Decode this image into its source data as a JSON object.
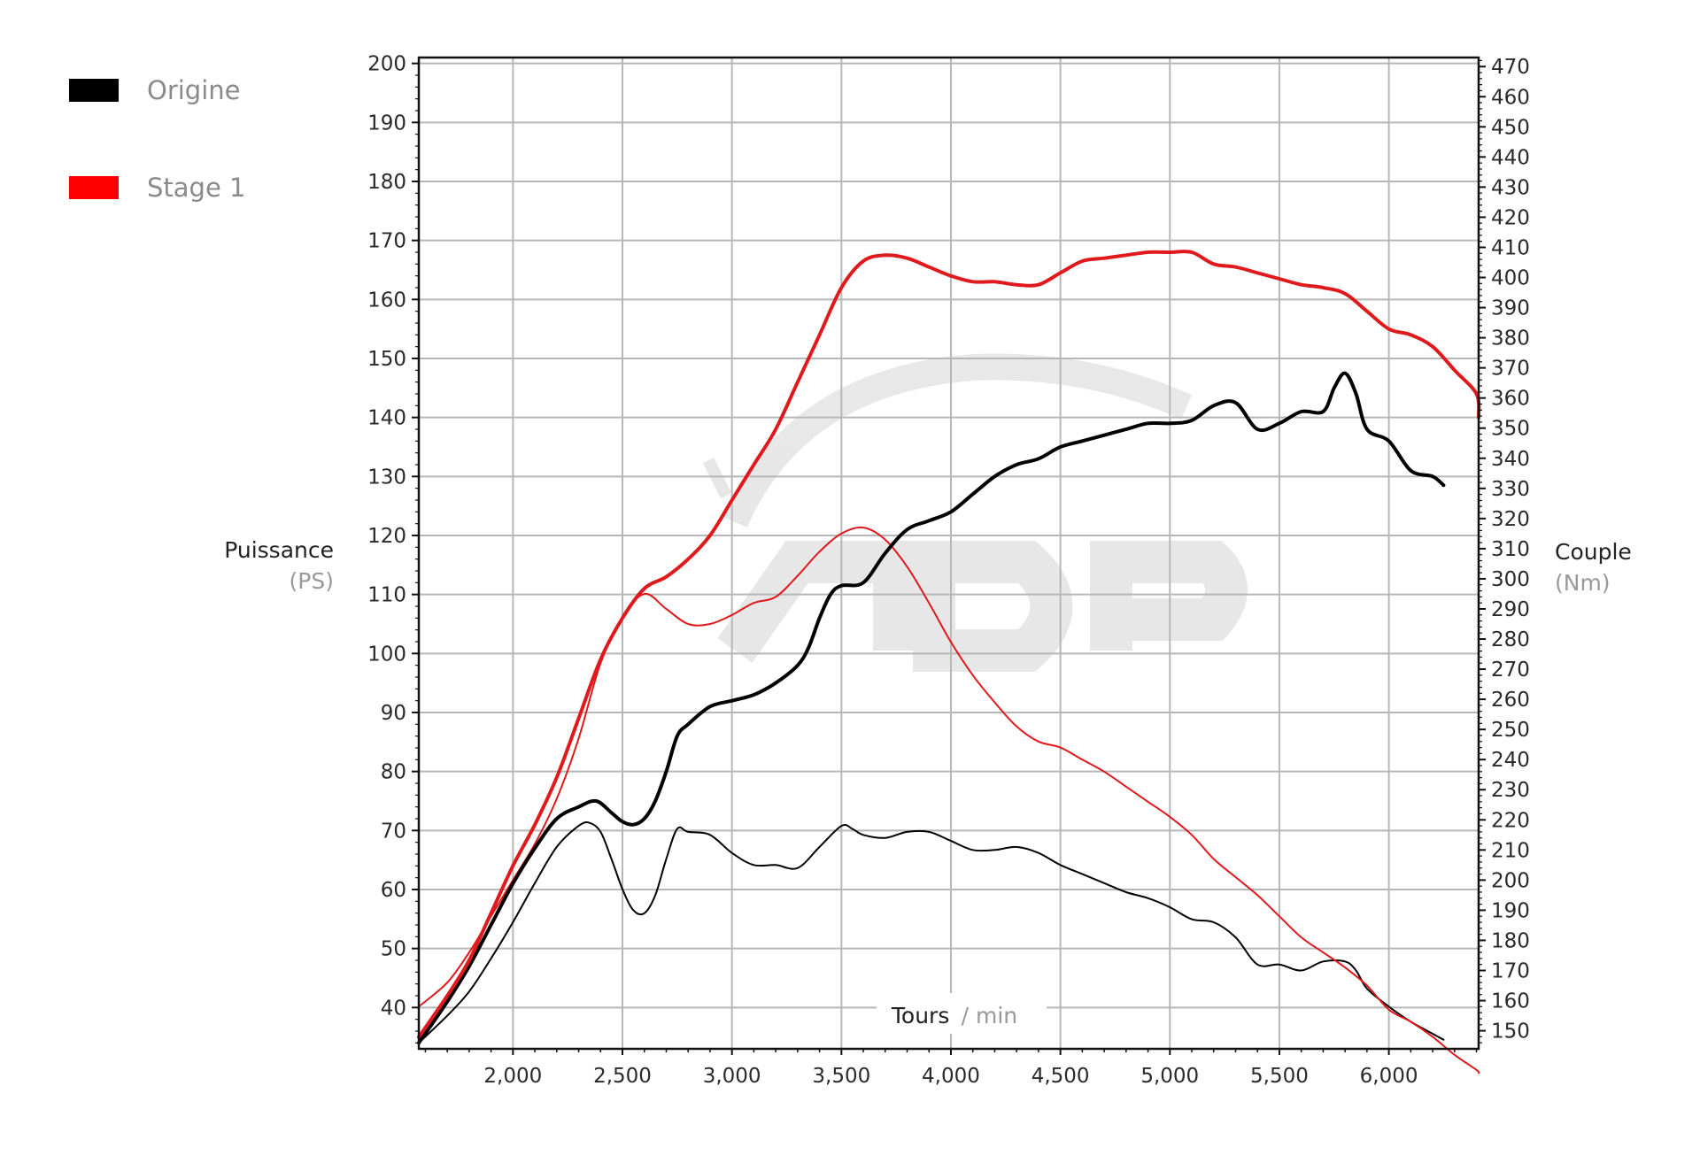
{
  "legend": [
    {
      "label": "Origine",
      "color": "#000000"
    },
    {
      "label": "Stage 1",
      "color": "#ff0000"
    }
  ],
  "chart_data": {
    "type": "line",
    "title": "",
    "watermark": "ADP",
    "xlabel": "Tours",
    "xlabel_unit": "/ min",
    "ylabel_left": "Puissance",
    "ylabel_left_unit": "(PS)",
    "ylabel_right": "Couple",
    "ylabel_right_unit": "(Nm)",
    "xlim": [
      1570,
      6410
    ],
    "ylim_left": [
      33,
      201
    ],
    "ylim_right": [
      144,
      473
    ],
    "x_ticks": [
      2000,
      2500,
      3000,
      3500,
      4000,
      4500,
      5000,
      5500,
      6000
    ],
    "x_tick_labels": [
      "2,000",
      "2,500",
      "3,000",
      "3,500",
      "4,000",
      "4,500",
      "5,000",
      "5,500",
      "6,000"
    ],
    "y_left_ticks": [
      40,
      50,
      60,
      70,
      80,
      90,
      100,
      110,
      120,
      130,
      140,
      150,
      160,
      170,
      180,
      190,
      200
    ],
    "y_right_ticks": [
      150,
      160,
      170,
      180,
      190,
      200,
      210,
      220,
      230,
      240,
      250,
      260,
      270,
      280,
      290,
      300,
      310,
      320,
      330,
      340,
      350,
      360,
      370,
      380,
      390,
      400,
      410,
      420,
      430,
      440,
      450,
      460,
      470
    ],
    "grid": true,
    "legend_position": "top-left",
    "series": [
      {
        "name": "Origine",
        "quantity": "Puissance",
        "axis": "left",
        "color": "#000000",
        "width": 4,
        "x": [
          1570,
          1700,
          1800,
          1900,
          2000,
          2100,
          2200,
          2300,
          2380,
          2450,
          2500,
          2550,
          2600,
          2650,
          2700,
          2750,
          2800,
          2900,
          3000,
          3100,
          3200,
          3300,
          3350,
          3400,
          3450,
          3500,
          3600,
          3700,
          3800,
          3900,
          4000,
          4100,
          4200,
          4300,
          4400,
          4500,
          4600,
          4700,
          4800,
          4900,
          5000,
          5100,
          5200,
          5300,
          5400,
          5500,
          5600,
          5700,
          5750,
          5800,
          5850,
          5900,
          6000,
          6100,
          6200,
          6250
        ],
        "y": [
          34,
          41,
          47,
          54,
          61,
          67,
          72,
          74,
          75,
          73,
          71.5,
          71,
          72,
          75,
          80,
          86,
          88,
          91,
          92,
          93,
          95,
          98,
          101,
          106,
          110,
          111.5,
          112,
          117,
          121,
          122.5,
          124,
          127,
          130,
          132,
          133,
          135,
          136,
          137,
          138,
          139,
          139,
          139.5,
          142,
          142.5,
          138,
          139,
          141,
          141,
          145,
          147.5,
          144,
          138,
          136,
          131,
          130,
          128.5
        ]
      },
      {
        "name": "Stage 1",
        "quantity": "Puissance",
        "axis": "left",
        "color": "#e0191c",
        "width": 4,
        "x": [
          1570,
          1700,
          1800,
          1900,
          2000,
          2100,
          2200,
          2300,
          2400,
          2500,
          2600,
          2700,
          2800,
          2900,
          3000,
          3100,
          3200,
          3300,
          3400,
          3500,
          3600,
          3700,
          3800,
          3900,
          4000,
          4100,
          4200,
          4300,
          4400,
          4500,
          4600,
          4700,
          4800,
          4900,
          5000,
          5100,
          5200,
          5300,
          5400,
          5500,
          5600,
          5700,
          5800,
          5900,
          6000,
          6100,
          6200,
          6300,
          6400,
          6410
        ],
        "y": [
          35,
          42,
          48,
          56,
          64,
          71,
          79,
          89,
          99,
          106,
          111,
          113,
          116,
          120,
          126,
          132,
          138,
          146,
          154,
          162,
          166.5,
          167.5,
          167,
          165.5,
          164,
          163,
          163,
          162.5,
          162.5,
          164.5,
          166.5,
          167,
          167.5,
          168,
          168,
          168,
          166,
          165.5,
          164.5,
          163.5,
          162.5,
          162,
          161,
          158,
          155,
          154,
          152,
          148,
          144,
          140
        ]
      },
      {
        "name": "Origine",
        "quantity": "Couple",
        "axis": "right",
        "color": "#000000",
        "width": 2,
        "x": [
          1570,
          1700,
          1800,
          1900,
          2000,
          2100,
          2200,
          2300,
          2350,
          2400,
          2450,
          2500,
          2550,
          2600,
          2650,
          2700,
          2750,
          2800,
          2900,
          3000,
          3100,
          3200,
          3300,
          3400,
          3500,
          3550,
          3600,
          3700,
          3800,
          3900,
          4000,
          4100,
          4200,
          4300,
          4400,
          4500,
          4600,
          4700,
          4800,
          4900,
          5000,
          5100,
          5200,
          5300,
          5400,
          5500,
          5600,
          5700,
          5800,
          5850,
          5900,
          6000,
          6100,
          6200,
          6250
        ],
        "y": [
          146,
          155,
          163,
          174,
          186,
          199,
          211,
          218,
          219,
          216,
          207,
          197,
          190,
          189,
          195,
          207,
          217,
          216,
          215,
          209,
          205,
          205,
          204,
          211,
          218,
          217,
          215,
          214,
          216,
          216,
          213,
          210,
          210,
          211,
          209,
          205,
          202,
          199,
          196,
          194,
          191,
          187,
          186,
          181,
          172,
          172,
          170,
          173,
          173,
          170,
          164,
          158,
          153,
          149,
          147
        ]
      },
      {
        "name": "Stage 1",
        "quantity": "Couple",
        "axis": "right",
        "color": "#e0191c",
        "width": 2,
        "x": [
          1570,
          1700,
          1800,
          1900,
          2000,
          2100,
          2200,
          2300,
          2400,
          2500,
          2600,
          2700,
          2800,
          2900,
          3000,
          3100,
          3200,
          3300,
          3400,
          3500,
          3600,
          3700,
          3800,
          3900,
          4000,
          4100,
          4200,
          4300,
          4400,
          4500,
          4600,
          4700,
          4800,
          4900,
          5000,
          5100,
          5200,
          5300,
          5400,
          5500,
          5600,
          5700,
          5800,
          5900,
          6000,
          6100,
          6200,
          6300,
          6400,
          6410
        ],
        "y": [
          158,
          166,
          176,
          188,
          200,
          212,
          227,
          247,
          272,
          287,
          295,
          290,
          285,
          285,
          288,
          292,
          294,
          301,
          309,
          315,
          317,
          313,
          304,
          292,
          279,
          268,
          259,
          251,
          246,
          244,
          240,
          236,
          231,
          226,
          221,
          215,
          207,
          201,
          195,
          188,
          181,
          176,
          171,
          165,
          157,
          153,
          148,
          142,
          137,
          136
        ]
      }
    ]
  }
}
